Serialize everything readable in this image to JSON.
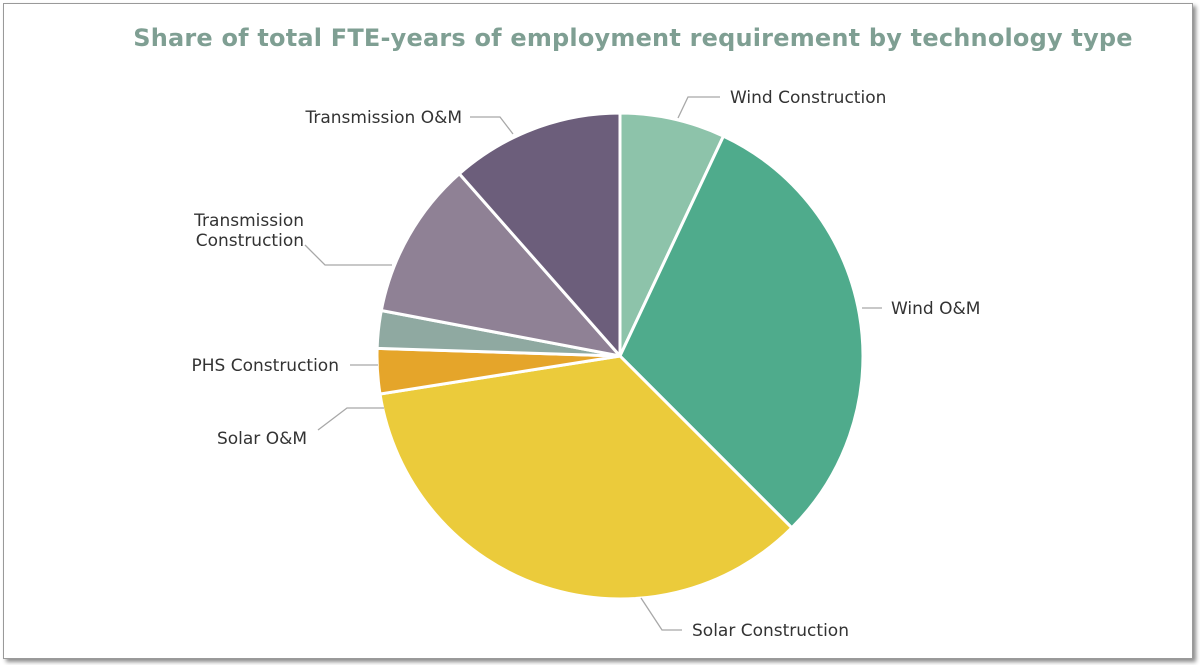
{
  "chart_data": {
    "type": "pie",
    "title": "Share of total FTE-years of employment requirement by technology type",
    "slices": [
      {
        "label": [
          "Wind Construction"
        ],
        "value": 7.0,
        "color": "#8dc3aa"
      },
      {
        "label": [
          "Wind O&M"
        ],
        "value": 30.5,
        "color": "#4fab8c"
      },
      {
        "label": [
          "Solar Construction"
        ],
        "value": 35.0,
        "color": "#ebcb3b"
      },
      {
        "label": [
          "Solar O&M"
        ],
        "value": 3.0,
        "color": "#e5a52a"
      },
      {
        "label": [
          "PHS Construction"
        ],
        "value": 2.5,
        "color": "#8fa9a1"
      },
      {
        "label": [
          "Transmission",
          "Construction"
        ],
        "value": 10.5,
        "color": "#8f8195"
      },
      {
        "label": [
          "Transmission O&M"
        ],
        "value": 11.5,
        "color": "#6c5e7b"
      }
    ]
  }
}
